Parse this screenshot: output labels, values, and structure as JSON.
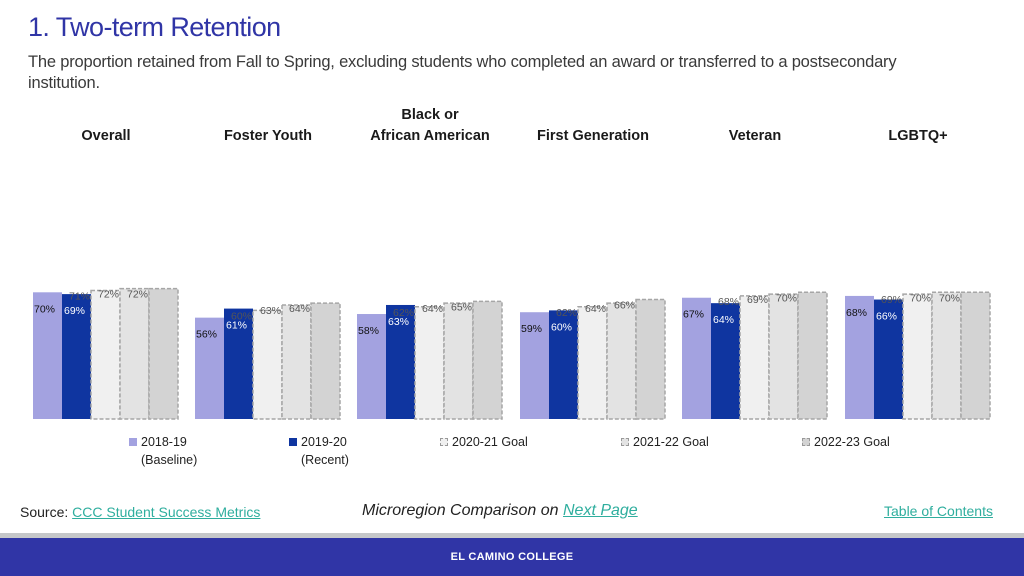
{
  "title": "1. Two-term Retention",
  "subtitle": "The proportion retained from Fall to Spring, excluding students who completed an award or transferred to a postsecondary institution.",
  "chart_data": {
    "type": "bar",
    "title": "Two-term Retention",
    "categories": [
      "Overall",
      "Foster Youth",
      "Black or African American",
      "First Generation",
      "Veteran",
      "LGBTQ+"
    ],
    "category_label_lines": [
      [
        "Overall"
      ],
      [
        "Foster Youth"
      ],
      [
        "Black or",
        "African American"
      ],
      [
        "First Generation"
      ],
      [
        "Veteran"
      ],
      [
        "LGBTQ+"
      ]
    ],
    "ylim": [
      0,
      100
    ],
    "grid": false,
    "series": [
      {
        "name": "2018-19 (Baseline)",
        "values": [
          70,
          56,
          58,
          59,
          67,
          68
        ],
        "color": "#a3a2e0",
        "style": "solid"
      },
      {
        "name": "2019-20 (Recent)",
        "values": [
          69,
          61,
          63,
          60,
          64,
          66
        ],
        "color": "#0f35a0",
        "style": "solid"
      },
      {
        "name": "2020-21 Goal",
        "values": [
          71,
          60,
          62,
          62,
          68,
          69
        ],
        "color": "#f0f0f0",
        "style": "dashed"
      },
      {
        "name": "2021-22 Goal",
        "values": [
          72,
          63,
          64,
          64,
          69,
          70
        ],
        "color": "#e3e3e3",
        "style": "dashed"
      },
      {
        "name": "2022-23 Goal",
        "values": [
          72,
          64,
          65,
          66,
          70,
          70
        ],
        "color": "#d3d3d3",
        "style": "dashed"
      }
    ]
  },
  "legend": [
    {
      "line1": "2018-19",
      "line2": "(Baseline)",
      "color": "#a3a2e0"
    },
    {
      "line1": "2019-20",
      "line2": "(Recent)",
      "color": "#0f35a0"
    },
    {
      "line1": "2020-21 Goal",
      "line2": "",
      "color": "#f0f0f0"
    },
    {
      "line1": "2021-22 Goal",
      "line2": "",
      "color": "#e3e3e3"
    },
    {
      "line1": "2022-23 Goal",
      "line2": "",
      "color": "#d3d3d3"
    }
  ],
  "source_label": "Source:",
  "source_link": "CCC Student Success Metrics",
  "microregion_text": "Microregion Comparison on",
  "next_page_link": "Next Page",
  "toc_link": "Table of Contents",
  "footer_text": "EL CAMINO COLLEGE",
  "colors": {
    "title": "#3035a6",
    "link": "#2fae9e",
    "footer": "#3035a6"
  }
}
